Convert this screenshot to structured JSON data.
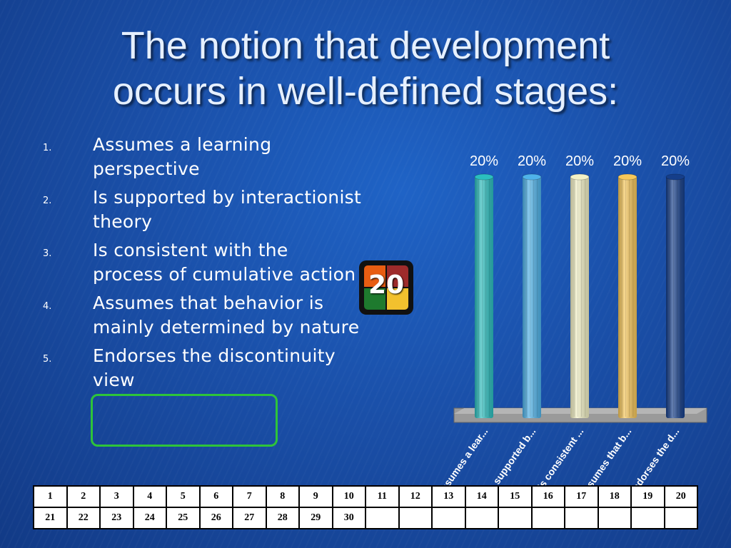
{
  "title_lines": [
    "The notion that development",
    "occurs in well-defined stages:"
  ],
  "options": [
    {
      "number": "1.",
      "text": "Assumes a learning perspective"
    },
    {
      "number": "2.",
      "text": "Is supported by interactionist theory"
    },
    {
      "number": "3.",
      "text": "Is consistent with the process of cumulative action"
    },
    {
      "number": "4.",
      "text": "Assumes that behavior is mainly determined by nature"
    },
    {
      "number": "5.",
      "text": "Endorses the discontinuity view"
    }
  ],
  "highlighted_option": 5,
  "countdown": "20",
  "chart_data": {
    "type": "bar",
    "categories": [
      "Assumes a lear...",
      "Is supported b...",
      "Is consistent ...",
      "Assumes that b...",
      "Endorses the d..."
    ],
    "values": [
      20,
      20,
      20,
      20,
      20
    ],
    "value_labels": [
      "20%",
      "20%",
      "20%",
      "20%",
      "20%"
    ],
    "ylim": [
      0,
      20
    ],
    "colors": [
      "#2bbfbf",
      "#4fb3ea",
      "#f4f2c6",
      "#f8c85a",
      "#153e8a"
    ],
    "title": "",
    "xlabel": "",
    "ylabel": ""
  },
  "response_grid": {
    "rows": [
      [
        "1",
        "2",
        "3",
        "4",
        "5",
        "6",
        "7",
        "8",
        "9",
        "10",
        "11",
        "12",
        "13",
        "14",
        "15",
        "16",
        "17",
        "18",
        "19",
        "20"
      ],
      [
        "21",
        "22",
        "23",
        "24",
        "25",
        "26",
        "27",
        "28",
        "29",
        "30",
        "",
        "",
        "",
        "",
        "",
        "",
        "",
        "",
        "",
        ""
      ]
    ]
  }
}
